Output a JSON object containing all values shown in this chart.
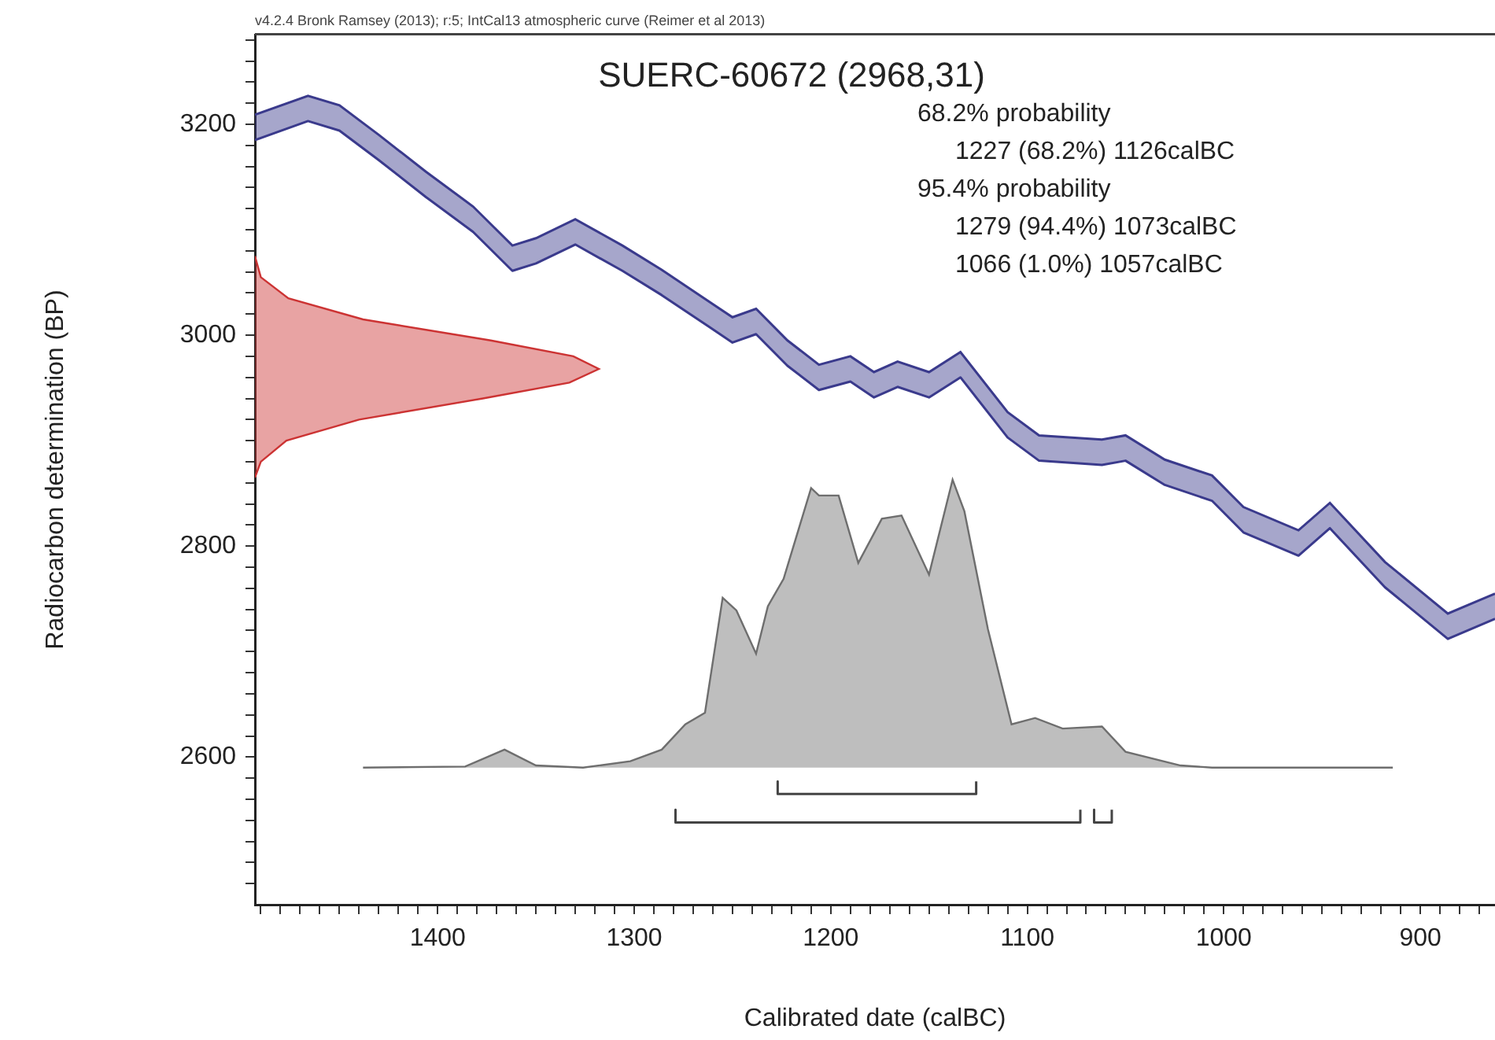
{
  "chart_data": {
    "type": "line",
    "title": "SUERC-60672 (2968,31)",
    "xlabel": "Calibrated date (calBC)",
    "ylabel": "Radiocarbon determination (BP)",
    "annotations": [
      "v4.2.4 Bronk Ramsey (2013); r:5; IntCal13 atmospheric curve (Reimer et al 2013)",
      "68.2% probability",
      "1227 (68.2%) 1126calBC",
      "95.4% probability",
      "1279 (94.4%) 1073calBC",
      "1066 (1.0%) 1057calBC"
    ],
    "xlim": [
      1493,
      862
    ],
    "ylim": [
      2460,
      3285
    ],
    "xticks": [
      {
        "value": 1490,
        "label": null
      },
      {
        "value": 1480,
        "label": null
      },
      {
        "value": 1470,
        "label": null
      },
      {
        "value": 1460,
        "label": null
      },
      {
        "value": 1450,
        "label": null
      },
      {
        "value": 1440,
        "label": null
      },
      {
        "value": 1430,
        "label": null
      },
      {
        "value": 1420,
        "label": null
      },
      {
        "value": 1410,
        "label": null
      },
      1400,
      {
        "value": 1390,
        "label": null
      },
      {
        "value": 1380,
        "label": null
      },
      {
        "value": 1370,
        "label": null
      },
      {
        "value": 1360,
        "label": null
      },
      {
        "value": 1350,
        "label": null
      },
      {
        "value": 1340,
        "label": null
      },
      {
        "value": 1330,
        "label": null
      },
      {
        "value": 1320,
        "label": null
      },
      {
        "value": 1310,
        "label": null
      },
      1300,
      {
        "value": 1290,
        "label": null
      },
      {
        "value": 1280,
        "label": null
      },
      {
        "value": 1270,
        "label": null
      },
      {
        "value": 1260,
        "label": null
      },
      {
        "value": 1250,
        "label": null
      },
      {
        "value": 1240,
        "label": null
      },
      {
        "value": 1230,
        "label": null
      },
      {
        "value": 1220,
        "label": null
      },
      {
        "value": 1210,
        "label": null
      },
      1200,
      {
        "value": 1190,
        "label": null
      },
      {
        "value": 1180,
        "label": null
      },
      {
        "value": 1170,
        "label": null
      },
      {
        "value": 1160,
        "label": null
      },
      {
        "value": 1150,
        "label": null
      },
      {
        "value": 1140,
        "label": null
      },
      {
        "value": 1130,
        "label": null
      },
      {
        "value": 1120,
        "label": null
      },
      {
        "value": 1110,
        "label": null
      },
      1100,
      {
        "value": 1090,
        "label": null
      },
      {
        "value": 1080,
        "label": null
      },
      {
        "value": 1070,
        "label": null
      },
      {
        "value": 1060,
        "label": null
      },
      {
        "value": 1050,
        "label": null
      },
      {
        "value": 1040,
        "label": null
      },
      {
        "value": 1030,
        "label": null
      },
      {
        "value": 1020,
        "label": null
      },
      {
        "value": 1010,
        "label": null
      },
      1000,
      {
        "value": 990,
        "label": null
      },
      {
        "value": 980,
        "label": null
      },
      {
        "value": 970,
        "label": null
      },
      {
        "value": 960,
        "label": null
      },
      {
        "value": 950,
        "label": null
      },
      {
        "value": 940,
        "label": null
      },
      {
        "value": 930,
        "label": null
      },
      {
        "value": 920,
        "label": null
      },
      {
        "value": 910,
        "label": null
      },
      900,
      {
        "value": 890,
        "label": null
      },
      {
        "value": 880,
        "label": null
      },
      {
        "value": 870,
        "label": null
      }
    ],
    "yticks": [
      {
        "value": 2480,
        "label": null
      },
      {
        "value": 2500,
        "label": null
      },
      {
        "value": 2520,
        "label": null
      },
      {
        "value": 2540,
        "label": null
      },
      {
        "value": 2560,
        "label": null
      },
      {
        "value": 2580,
        "label": null
      },
      2600,
      {
        "value": 2620,
        "label": null
      },
      {
        "value": 2640,
        "label": null
      },
      {
        "value": 2660,
        "label": null
      },
      {
        "value": 2680,
        "label": null
      },
      {
        "value": 2700,
        "label": null
      },
      {
        "value": 2720,
        "label": null
      },
      {
        "value": 2740,
        "label": null
      },
      {
        "value": 2760,
        "label": null
      },
      {
        "value": 2780,
        "label": null
      },
      2800,
      {
        "value": 2820,
        "label": null
      },
      {
        "value": 2840,
        "label": null
      },
      {
        "value": 2860,
        "label": null
      },
      {
        "value": 2880,
        "label": null
      },
      {
        "value": 2900,
        "label": null
      },
      {
        "value": 2920,
        "label": null
      },
      {
        "value": 2940,
        "label": null
      },
      {
        "value": 2960,
        "label": null
      },
      {
        "value": 2980,
        "label": null
      },
      3000,
      {
        "value": 3020,
        "label": null
      },
      {
        "value": 3040,
        "label": null
      },
      {
        "value": 3060,
        "label": null
      },
      {
        "value": 3080,
        "label": null
      },
      {
        "value": 3100,
        "label": null
      },
      {
        "value": 3120,
        "label": null
      },
      {
        "value": 3140,
        "label": null
      },
      {
        "value": 3160,
        "label": null
      },
      {
        "value": 3180,
        "label": null
      },
      3200,
      {
        "value": 3220,
        "label": null
      },
      {
        "value": 3240,
        "label": null
      },
      {
        "value": 3260,
        "label": null
      },
      {
        "value": 3280,
        "label": null
      }
    ],
    "series": [
      {
        "color": "#3a3a8c",
        "x": [
          1493,
          1466,
          1450,
          1430,
          1406,
          1382,
          1362,
          1350,
          1330,
          1306,
          1286,
          1262,
          1250,
          1238,
          1222,
          1206,
          1190,
          1178,
          1166,
          1150,
          1134,
          1110,
          1094,
          1062,
          1050,
          1030,
          1006,
          990,
          962,
          946,
          918,
          886,
          862
        ],
        "values": [
          3185,
          3203,
          3194,
          3166,
          3131,
          3098,
          3061,
          3068,
          3086,
          3061,
          3038,
          3008,
          2993,
          3001,
          2971,
          2948,
          2956,
          2941,
          2951,
          2941,
          2960,
          2903,
          2881,
          2877,
          2881,
          2858,
          2843,
          2813,
          2791,
          2817,
          2761,
          2712,
          2731
        ]
      },
      {
        "color": "#3a3a8c",
        "x": [
          1493,
          1466,
          1450,
          1430,
          1406,
          1382,
          1362,
          1350,
          1330,
          1306,
          1286,
          1262,
          1250,
          1238,
          1222,
          1206,
          1190,
          1178,
          1166,
          1150,
          1134,
          1110,
          1094,
          1062,
          1050,
          1030,
          1006,
          990,
          962,
          946,
          918,
          886,
          862
        ],
        "values": [
          3209,
          3227,
          3218,
          3190,
          3155,
          3122,
          3085,
          3092,
          3110,
          3085,
          3062,
          3032,
          3017,
          3025,
          2995,
          2972,
          2980,
          2965,
          2975,
          2965,
          2984,
          2927,
          2905,
          2901,
          2905,
          2882,
          2867,
          2837,
          2815,
          2841,
          2785,
          2736,
          2755
        ],
        "lower": [
          3185,
          3203,
          3194,
          3166,
          3131,
          3098,
          3061,
          3068,
          3086,
          3061,
          3038,
          3008,
          2993,
          3001,
          2971,
          2948,
          2956,
          2941,
          2951,
          2941,
          2960,
          2903,
          2881,
          2877,
          2881,
          2858,
          2843,
          2813,
          2791,
          2817,
          2761,
          2712,
          2731
        ],
        "upper": [
          3209,
          3227,
          3218,
          3190,
          3155,
          3122,
          3085,
          3092,
          3110,
          3085,
          3062,
          3032,
          3017,
          3025,
          2995,
          2972,
          2980,
          2965,
          2975,
          2965,
          2984,
          2927,
          2905,
          2901,
          2905,
          2882,
          2867,
          2837,
          2815,
          2841,
          2785,
          2736,
          2755
        ]
      },
      {
        "type": "area",
        "color": "#cc3333",
        "x": [
          1493,
          1490,
          1477,
          1440,
          1377,
          1333,
          1318,
          1331,
          1373,
          1438,
          1476,
          1490,
          1493
        ],
        "values": [
          2865,
          2880,
          2900,
          2920,
          2940,
          2955,
          2968,
          2980,
          2995,
          3015,
          3035,
          3055,
          3075
        ]
      },
      {
        "type": "area",
        "color": "#6e6e6e",
        "x": [
          1438,
          1386,
          1366,
          1350,
          1326,
          1302,
          1286,
          1274,
          1264,
          1255,
          1248,
          1238,
          1232,
          1224,
          1210,
          1206,
          1196,
          1186,
          1174,
          1164,
          1150,
          1138,
          1132,
          1120,
          1108,
          1096,
          1082,
          1062,
          1050,
          1022,
          1006,
          914
        ],
        "values": [
          2590,
          2591,
          2607,
          2592,
          2590,
          2596,
          2607,
          2631,
          2642,
          2751,
          2739,
          2698,
          2743,
          2769,
          2855,
          2848,
          2848,
          2784,
          2826,
          2829,
          2773,
          2863,
          2833,
          2721,
          2631,
          2637,
          2627,
          2629,
          2605,
          2592,
          2590,
          2590
        ]
      },
      {
        "color": "#444444",
        "x": [
          1227,
          1227,
          1126,
          1126
        ],
        "values": [
          2577,
          2565,
          2565,
          2577
        ]
      },
      {
        "color": "#444444",
        "x": [
          1279,
          1279,
          1073,
          1073,
          1070,
          1066,
          1066,
          1057,
          1057
        ],
        "values": [
          2550,
          2538,
          2538,
          2550,
          null,
          2550,
          2538,
          2538,
          2550
        ]
      }
    ]
  }
}
